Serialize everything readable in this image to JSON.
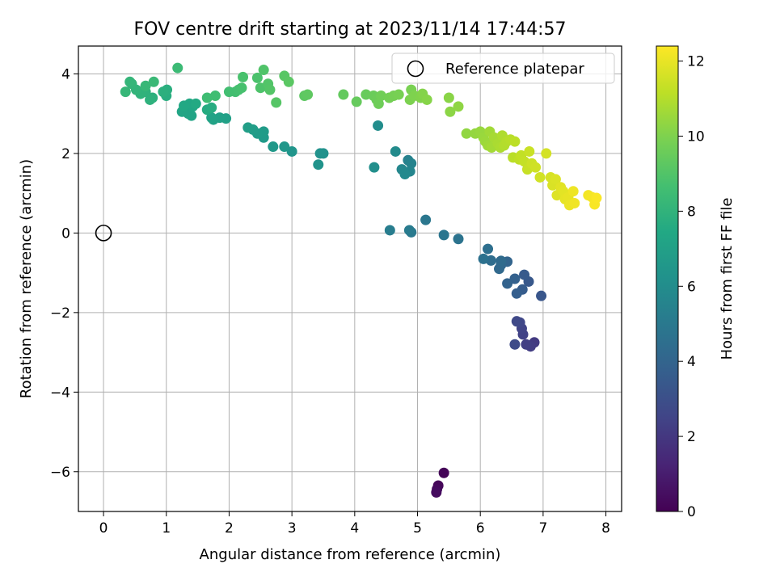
{
  "chart_data": {
    "type": "scatter",
    "title": "FOV centre drift starting at 2023/11/14 17:44:57",
    "xlabel": "Angular distance from reference (arcmin)",
    "ylabel": "Rotation from reference (arcmin)",
    "xlim": [
      -0.4,
      8.25
    ],
    "ylim": [
      -7.0,
      4.7
    ],
    "xticks": [
      0,
      1,
      2,
      3,
      4,
      5,
      6,
      7,
      8
    ],
    "yticks": [
      -6,
      -4,
      -2,
      0,
      2,
      4
    ],
    "xtick_labels": [
      "0",
      "1",
      "2",
      "3",
      "4",
      "5",
      "6",
      "7",
      "8"
    ],
    "ytick_labels": [
      "−6",
      "−4",
      "−2",
      "0",
      "2",
      "4"
    ],
    "grid": true,
    "legend": {
      "position": "upper-right",
      "label": "Reference platepar"
    },
    "reference_point": {
      "x": 0,
      "y": 0
    },
    "colorbar": {
      "label": "Hours from first FF file",
      "range": [
        0,
        12.4
      ],
      "ticks": [
        0,
        2,
        4,
        6,
        8,
        10,
        12
      ],
      "colormap": "viridis"
    },
    "points": [
      [
        5.42,
        -6.03,
        0.1
      ],
      [
        5.33,
        -6.35,
        0.2
      ],
      [
        5.31,
        -6.44,
        0.3
      ],
      [
        5.3,
        -6.52,
        0.4
      ],
      [
        6.86,
        -2.75,
        2.1
      ],
      [
        6.8,
        -2.85,
        2.2
      ],
      [
        6.73,
        -2.8,
        2.3
      ],
      [
        6.68,
        -2.55,
        2.4
      ],
      [
        6.66,
        -2.4,
        2.5
      ],
      [
        6.63,
        -2.25,
        2.6
      ],
      [
        6.58,
        -2.22,
        2.7
      ],
      [
        6.55,
        -2.8,
        2.8
      ],
      [
        6.97,
        -1.58,
        3.3
      ],
      [
        6.77,
        -1.22,
        3.4
      ],
      [
        6.7,
        -1.05,
        3.5
      ],
      [
        6.67,
        -1.42,
        3.6
      ],
      [
        6.58,
        -1.52,
        3.7
      ],
      [
        6.55,
        -1.15,
        3.8
      ],
      [
        6.43,
        -1.27,
        3.9
      ],
      [
        6.43,
        -0.72,
        4.0
      ],
      [
        6.33,
        -0.8,
        4.1
      ],
      [
        6.3,
        -0.9,
        4.2
      ],
      [
        6.33,
        -0.7,
        4.3
      ],
      [
        6.17,
        -0.69,
        4.4
      ],
      [
        6.12,
        -0.4,
        4.5
      ],
      [
        6.05,
        -0.65,
        4.6
      ],
      [
        5.65,
        -0.15,
        4.7
      ],
      [
        5.42,
        -0.05,
        4.8
      ],
      [
        5.13,
        0.33,
        4.9
      ],
      [
        4.9,
        0.02,
        5.0
      ],
      [
        4.87,
        0.07,
        5.1
      ],
      [
        4.56,
        0.07,
        5.2
      ],
      [
        4.85,
        1.83,
        5.4
      ],
      [
        4.9,
        1.75,
        5.5
      ],
      [
        4.88,
        1.55,
        5.6
      ],
      [
        4.75,
        1.6,
        5.7
      ],
      [
        4.8,
        1.48,
        5.8
      ],
      [
        4.65,
        2.05,
        5.9
      ],
      [
        4.37,
        2.7,
        6.0
      ],
      [
        4.31,
        1.65,
        6.1
      ],
      [
        3.5,
        2.0,
        6.2
      ],
      [
        3.45,
        2.0,
        6.25
      ],
      [
        3.42,
        1.72,
        6.3
      ],
      [
        3.0,
        2.05,
        6.4
      ],
      [
        2.88,
        2.17,
        6.5
      ],
      [
        2.7,
        2.17,
        6.6
      ],
      [
        2.55,
        2.4,
        6.7
      ],
      [
        2.55,
        2.55,
        6.75
      ],
      [
        2.45,
        2.5,
        6.8
      ],
      [
        2.38,
        2.6,
        6.85
      ],
      [
        2.3,
        2.65,
        6.9
      ],
      [
        1.95,
        2.88,
        7.0
      ],
      [
        1.85,
        2.9,
        7.05
      ],
      [
        1.75,
        2.85,
        7.1
      ],
      [
        1.72,
        2.9,
        7.15
      ],
      [
        1.4,
        2.95,
        7.2
      ],
      [
        1.35,
        3.0,
        7.25
      ],
      [
        1.25,
        3.05,
        7.3
      ],
      [
        1.42,
        3.18,
        7.35
      ],
      [
        1.37,
        3.25,
        7.4
      ],
      [
        1.28,
        3.2,
        7.45
      ],
      [
        1.47,
        3.25,
        7.5
      ],
      [
        1.65,
        3.1,
        7.6
      ],
      [
        1.72,
        3.15,
        7.65
      ],
      [
        1.0,
        3.45,
        7.7
      ],
      [
        1.01,
        3.6,
        7.75
      ],
      [
        0.95,
        3.55,
        7.8
      ],
      [
        0.78,
        3.4,
        7.85
      ],
      [
        0.74,
        3.35,
        7.9
      ],
      [
        0.67,
        3.55,
        7.95
      ],
      [
        0.59,
        3.5,
        8.0
      ],
      [
        0.52,
        3.6,
        8.05
      ],
      [
        0.45,
        3.75,
        8.1
      ],
      [
        0.42,
        3.8,
        8.15
      ],
      [
        0.35,
        3.55,
        8.2
      ],
      [
        0.67,
        3.7,
        8.25
      ],
      [
        0.8,
        3.8,
        8.3
      ],
      [
        1.18,
        4.15,
        8.4
      ],
      [
        1.65,
        3.4,
        8.5
      ],
      [
        1.78,
        3.45,
        8.55
      ],
      [
        2.0,
        3.55,
        8.6
      ],
      [
        2.1,
        3.55,
        8.65
      ],
      [
        2.15,
        3.6,
        8.7
      ],
      [
        2.2,
        3.65,
        8.75
      ],
      [
        2.22,
        3.92,
        8.8
      ],
      [
        2.45,
        3.9,
        8.85
      ],
      [
        2.5,
        3.65,
        8.9
      ],
      [
        2.55,
        4.1,
        8.95
      ],
      [
        2.62,
        3.75,
        9.0
      ],
      [
        2.65,
        3.6,
        9.05
      ],
      [
        2.75,
        3.28,
        9.1
      ],
      [
        2.88,
        3.95,
        9.15
      ],
      [
        2.95,
        3.8,
        9.2
      ],
      [
        3.2,
        3.45,
        9.25
      ],
      [
        3.25,
        3.48,
        9.3
      ],
      [
        3.82,
        3.48,
        9.4
      ],
      [
        4.03,
        3.3,
        9.45
      ],
      [
        4.18,
        3.48,
        9.5
      ],
      [
        4.3,
        3.45,
        9.55
      ],
      [
        4.35,
        3.35,
        9.6
      ],
      [
        4.38,
        3.25,
        9.65
      ],
      [
        4.42,
        3.45,
        9.7
      ],
      [
        4.55,
        3.4,
        9.75
      ],
      [
        4.62,
        3.45,
        9.8
      ],
      [
        4.7,
        3.48,
        9.85
      ],
      [
        4.9,
        3.6,
        9.9
      ],
      [
        4.88,
        3.35,
        9.95
      ],
      [
        4.95,
        3.45,
        10.0
      ],
      [
        5.05,
        3.4,
        10.05
      ],
      [
        5.08,
        3.5,
        10.1
      ],
      [
        5.15,
        3.35,
        10.15
      ],
      [
        5.5,
        3.4,
        10.2
      ],
      [
        5.52,
        3.05,
        10.25
      ],
      [
        5.65,
        3.18,
        10.3
      ],
      [
        5.78,
        2.5,
        10.35
      ],
      [
        5.92,
        2.5,
        10.4
      ],
      [
        6.0,
        2.55,
        10.45
      ],
      [
        6.05,
        2.4,
        10.5
      ],
      [
        6.08,
        2.3,
        10.55
      ],
      [
        6.12,
        2.2,
        10.6
      ],
      [
        6.15,
        2.55,
        10.65
      ],
      [
        6.18,
        2.15,
        10.7
      ],
      [
        6.22,
        2.4,
        10.75
      ],
      [
        6.28,
        2.25,
        10.8
      ],
      [
        6.32,
        2.15,
        10.85
      ],
      [
        6.35,
        2.45,
        10.9
      ],
      [
        6.38,
        2.2,
        10.95
      ],
      [
        6.42,
        2.3,
        11.0
      ],
      [
        6.48,
        2.35,
        11.05
      ],
      [
        6.52,
        1.9,
        11.1
      ],
      [
        6.55,
        2.3,
        11.15
      ],
      [
        6.62,
        1.85,
        11.2
      ],
      [
        6.65,
        1.95,
        11.25
      ],
      [
        6.7,
        1.8,
        11.3
      ],
      [
        6.75,
        1.6,
        11.35
      ],
      [
        6.78,
        2.05,
        11.4
      ],
      [
        6.82,
        1.75,
        11.45
      ],
      [
        6.88,
        1.65,
        11.5
      ],
      [
        6.95,
        1.4,
        11.55
      ],
      [
        7.05,
        2.0,
        11.6
      ],
      [
        7.12,
        1.4,
        11.65
      ],
      [
        7.15,
        1.2,
        11.7
      ],
      [
        7.2,
        1.35,
        11.75
      ],
      [
        7.22,
        0.95,
        11.8
      ],
      [
        7.28,
        1.15,
        11.85
      ],
      [
        7.32,
        1.05,
        11.9
      ],
      [
        7.35,
        0.85,
        11.95
      ],
      [
        7.4,
        0.9,
        12.0
      ],
      [
        7.42,
        0.7,
        12.05
      ],
      [
        7.48,
        1.05,
        12.1
      ],
      [
        7.5,
        0.75,
        12.15
      ],
      [
        7.72,
        0.95,
        12.2
      ],
      [
        7.78,
        0.9,
        12.25
      ],
      [
        7.82,
        0.72,
        12.3
      ],
      [
        7.85,
        0.88,
        12.35
      ]
    ]
  }
}
